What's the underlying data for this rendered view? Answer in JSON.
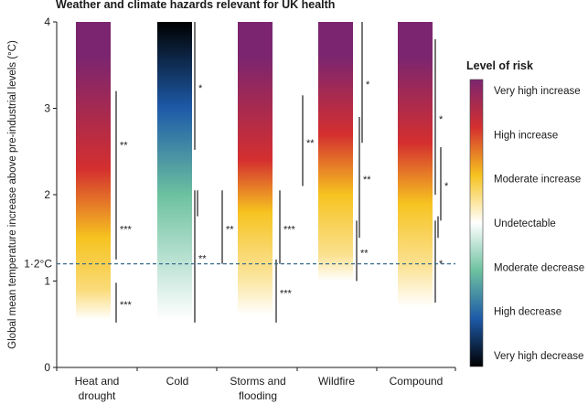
{
  "chart_data": {
    "type": "range-bar",
    "title": "Weather and climate hazards relevant for UK health",
    "ylabel": "Global mean temperature increase above pre-industrial levels (°C)",
    "ylim": [
      0,
      4
    ],
    "yticks": [
      "0",
      "1",
      "2",
      "3",
      "4"
    ],
    "reference_line": {
      "value": 1.2,
      "label": "1·2°C",
      "style": "dashed",
      "color": "#3a6d8c"
    },
    "categories": [
      "Heat and\ndrought",
      "Cold",
      "Storms and\nflooding",
      "Wildfire",
      "Compound"
    ],
    "colorscale": [
      {
        "risk": 3,
        "color": "#7b2570"
      },
      {
        "risk": 2,
        "color": "#d42f2f"
      },
      {
        "risk": 1,
        "color": "#f6c320"
      },
      {
        "risk": 0,
        "color": "#ffffff"
      },
      {
        "risk": -1,
        "color": "#6cc1a0"
      },
      {
        "risk": -2,
        "color": "#1e5aa8"
      },
      {
        "risk": -3,
        "color": "#000000"
      }
    ],
    "series": [
      {
        "category": "Heat and\ndrought",
        "risk_profile": [
          [
            0.55,
            0
          ],
          [
            0.9,
            0.6
          ],
          [
            1.5,
            1
          ],
          [
            2.3,
            2
          ],
          [
            3.6,
            3
          ],
          [
            4,
            3
          ]
        ],
        "confidence": [
          {
            "y": [
              0.52,
              0.98
            ],
            "label": "***"
          },
          {
            "y": [
              1.25,
              2.0
            ],
            "label": "***"
          },
          {
            "y": [
              2.0,
              3.2
            ],
            "label": "**"
          }
        ]
      },
      {
        "category": "Cold",
        "risk_profile": [
          [
            0.55,
            0
          ],
          [
            1.0,
            -0.3
          ],
          [
            2.0,
            -1
          ],
          [
            3.0,
            -2
          ],
          [
            4,
            -3
          ]
        ],
        "confidence": [
          {
            "y": [
              0.52,
              2.05
            ],
            "label": "**"
          },
          {
            "y": [
              1.75,
              2.05
            ],
            "label": ""
          },
          {
            "y": [
              1.2,
              2.05
            ],
            "label": "**"
          },
          {
            "y": [
              2.52,
              4.0
            ],
            "label": "*"
          }
        ]
      },
      {
        "category": "Storms and\nflooding",
        "risk_profile": [
          [
            0.6,
            0
          ],
          [
            1.0,
            0.4
          ],
          [
            1.8,
            1
          ],
          [
            2.4,
            2
          ],
          [
            3.6,
            3
          ],
          [
            4,
            3
          ]
        ],
        "confidence": [
          {
            "y": [
              0.52,
              1.25
            ],
            "label": "***"
          },
          {
            "y": [
              1.2,
              2.05
            ],
            "label": "***"
          },
          {
            "y": [
              2.1,
              3.15
            ],
            "label": "**"
          }
        ]
      },
      {
        "category": "Wildfire",
        "risk_profile": [
          [
            1.0,
            0
          ],
          [
            1.3,
            0.5
          ],
          [
            2.0,
            1
          ],
          [
            2.7,
            2
          ],
          [
            3.6,
            3
          ],
          [
            4,
            3
          ]
        ],
        "confidence": [
          {
            "y": [
              1.0,
              1.7
            ],
            "label": "**"
          },
          {
            "y": [
              1.5,
              2.9
            ],
            "label": "**"
          },
          {
            "y": [
              2.6,
              4.0
            ],
            "label": "*"
          }
        ]
      },
      {
        "category": "Compound",
        "risk_profile": [
          [
            0.7,
            0
          ],
          [
            1.2,
            0.5
          ],
          [
            1.9,
            1
          ],
          [
            2.6,
            2
          ],
          [
            3.6,
            3
          ],
          [
            4,
            3
          ]
        ],
        "confidence": [
          {
            "y": [
              0.75,
              1.7
            ],
            "label": "*"
          },
          {
            "y": [
              1.5,
              1.75
            ],
            "label": ""
          },
          {
            "y": [
              1.7,
              2.55
            ],
            "label": "*"
          },
          {
            "y": [
              2.0,
              3.8
            ],
            "label": "*"
          }
        ]
      }
    ],
    "legend": {
      "title": "Level of risk",
      "position": "right",
      "labels": [
        "Very high increase",
        "High increase",
        "Moderate increase",
        "Undetectable",
        "Moderate decrease",
        "High decrease",
        "Very high decrease"
      ]
    }
  }
}
